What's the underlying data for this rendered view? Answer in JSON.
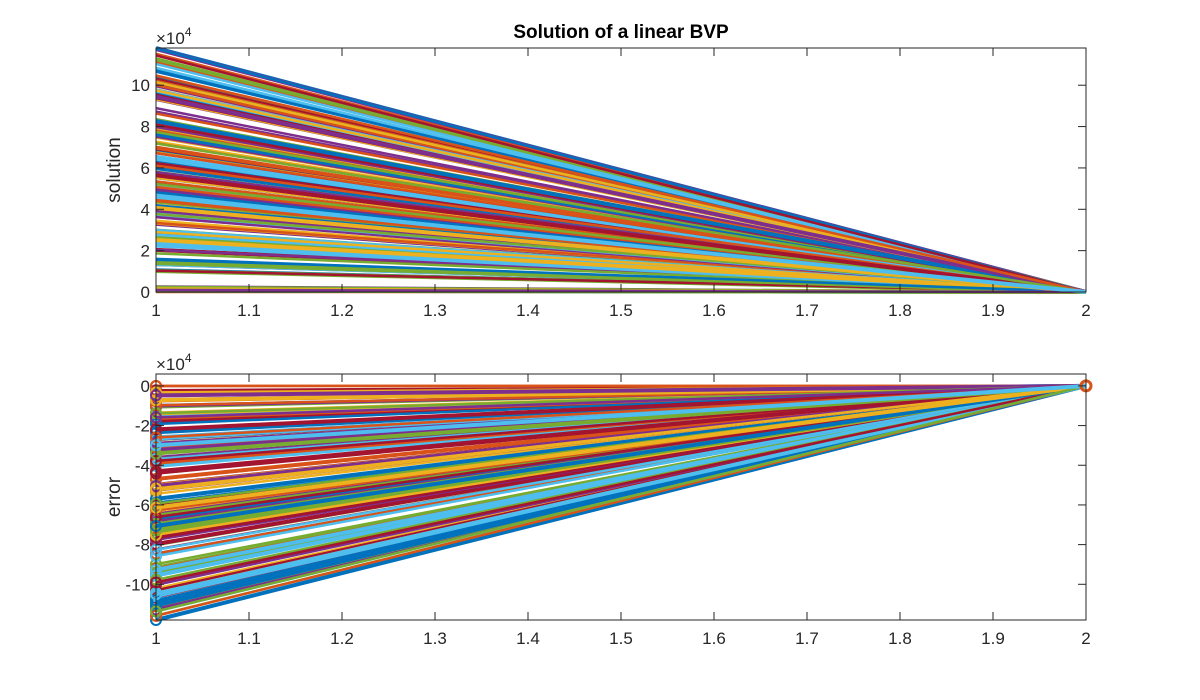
{
  "chart_data": [
    {
      "type": "line",
      "title": "Solution of a linear BVP",
      "xlabel": "",
      "ylabel": "solution",
      "xlim": [
        1,
        2
      ],
      "ylim": [
        0,
        11.8
      ],
      "y_scale_factor": "×10^4",
      "y_exponent_base": "×10",
      "y_exponent": "4",
      "x_ticks": [
        "1",
        "1.1",
        "1.2",
        "1.3",
        "1.4",
        "1.5",
        "1.6",
        "1.7",
        "1.8",
        "1.9",
        "2"
      ],
      "y_ticks": [
        "0",
        "2",
        "4",
        "6",
        "8",
        "10"
      ],
      "grid": false,
      "legend": "none",
      "markers": "none",
      "series_description": "many straight-line series from x=1 (value between 0 and 11.8 ×10^4) to x=2 (value 0)",
      "series_count": 160,
      "start_value_range": [
        0,
        11.8
      ],
      "end_value": 0
    },
    {
      "type": "line",
      "title": "",
      "xlabel": "",
      "ylabel": "error",
      "xlim": [
        1,
        2
      ],
      "ylim": [
        -11.8,
        0.6
      ],
      "y_scale_factor": "×10^4",
      "y_exponent_base": "×10",
      "y_exponent": "4",
      "x_ticks": [
        "1",
        "1.1",
        "1.2",
        "1.3",
        "1.4",
        "1.5",
        "1.6",
        "1.7",
        "1.8",
        "1.9",
        "2"
      ],
      "y_ticks": [
        "0",
        "-2",
        "-4",
        "-6",
        "-8",
        "-10"
      ],
      "grid": false,
      "legend": "none",
      "markers": "circle at endpoints",
      "series_description": "many straight-line series from x=1 (value between 0 and -11.8 ×10^4) to x=2 (value 0)",
      "series_count": 160,
      "start_value_range": [
        -11.8,
        0
      ],
      "end_value": 0
    }
  ],
  "colors": {
    "series_cycle": [
      "#0072BD",
      "#D95319",
      "#EDB120",
      "#7E2F8E",
      "#77AC30",
      "#4DBEEE",
      "#A2142F"
    ],
    "axis": "#262626",
    "background": "#ffffff"
  }
}
